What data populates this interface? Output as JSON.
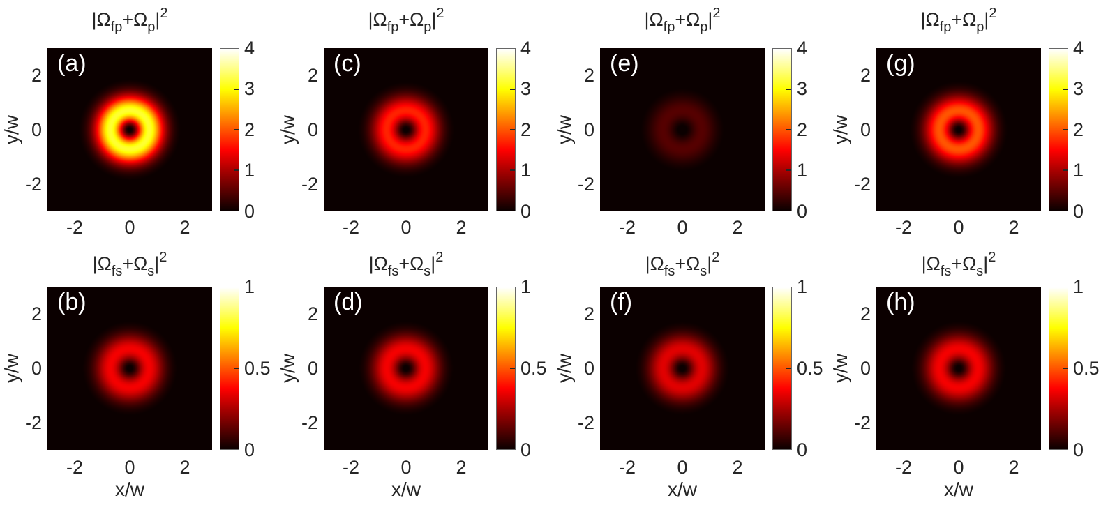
{
  "figure": {
    "background_color": "#ffffff",
    "text_color": "#262626",
    "panel_label_color": "#ffffff",
    "heatmap_background": "#0b0000"
  },
  "axes": {
    "xlabel": "x/w",
    "ylabel": "y/w",
    "xticks": [
      "-2",
      "0",
      "2"
    ],
    "yticks": [
      "2",
      "0",
      "-2"
    ]
  },
  "titles": {
    "pump": {
      "p1": "|Ω",
      "s1": "fp",
      "p2": "+Ω",
      "s2": "p",
      "p3": "|",
      "sup": "2"
    },
    "stokes": {
      "p1": "|Ω",
      "s1": "fs",
      "p2": "+Ω",
      "s2": "s",
      "p3": "|",
      "sup": "2"
    }
  },
  "colorbars": {
    "pump": {
      "ticks": [
        "4",
        "3",
        "2",
        "1",
        "0"
      ],
      "tick_values": [
        4,
        3,
        2,
        1,
        0
      ],
      "range": [
        0,
        4
      ]
    },
    "stokes": {
      "ticks": [
        "1",
        "0.5",
        "0"
      ],
      "tick_values": [
        1,
        0.5,
        0
      ],
      "range": [
        0,
        1
      ]
    }
  },
  "chart_data": {
    "type": "heatmap",
    "layout": "2 rows x 4 columns; top row pump field, bottom row Stokes field; colorbar right of each panel",
    "colormap": "hot (black-red-yellow-white)",
    "x_range_w": [
      -3,
      3
    ],
    "y_range_w": [
      -3,
      3
    ],
    "xticks": [
      -2,
      0,
      2
    ],
    "yticks": [
      -2,
      0,
      2
    ],
    "ring_radius_w": 0.71,
    "profile": "Laguerre-Gaussian donut mode: I(r) = peak * (r/rr)^2 * exp(1-(r/rr)^2), dark center, bright ring at r = rr = 0.71 w",
    "panels": [
      {
        "label": "(a)",
        "title": "|Ω_fp+Ω_p|²",
        "row": 1,
        "col": 1,
        "clim": [
          0,
          4
        ],
        "peak": 3.2
      },
      {
        "label": "(b)",
        "title": "|Ω_fs+Ω_s|²",
        "row": 2,
        "col": 1,
        "clim": [
          0,
          1
        ],
        "peak": 0.36
      },
      {
        "label": "(c)",
        "title": "|Ω_fp+Ω_p|²",
        "row": 1,
        "col": 2,
        "clim": [
          0,
          4
        ],
        "peak": 1.7
      },
      {
        "label": "(d)",
        "title": "|Ω_fs+Ω_s|²",
        "row": 2,
        "col": 2,
        "clim": [
          0,
          1
        ],
        "peak": 0.36
      },
      {
        "label": "(e)",
        "title": "|Ω_fp+Ω_p|²",
        "row": 1,
        "col": 3,
        "clim": [
          0,
          4
        ],
        "peak": 0.5
      },
      {
        "label": "(f)",
        "title": "|Ω_fs+Ω_s|²",
        "row": 2,
        "col": 3,
        "clim": [
          0,
          1
        ],
        "peak": 0.33
      },
      {
        "label": "(g)",
        "title": "|Ω_fp+Ω_p|²",
        "row": 1,
        "col": 4,
        "clim": [
          0,
          4
        ],
        "peak": 2.0
      },
      {
        "label": "(h)",
        "title": "|Ω_fs+Ω_s|²",
        "row": 2,
        "col": 4,
        "clim": [
          0,
          1
        ],
        "peak": 0.36
      }
    ]
  }
}
